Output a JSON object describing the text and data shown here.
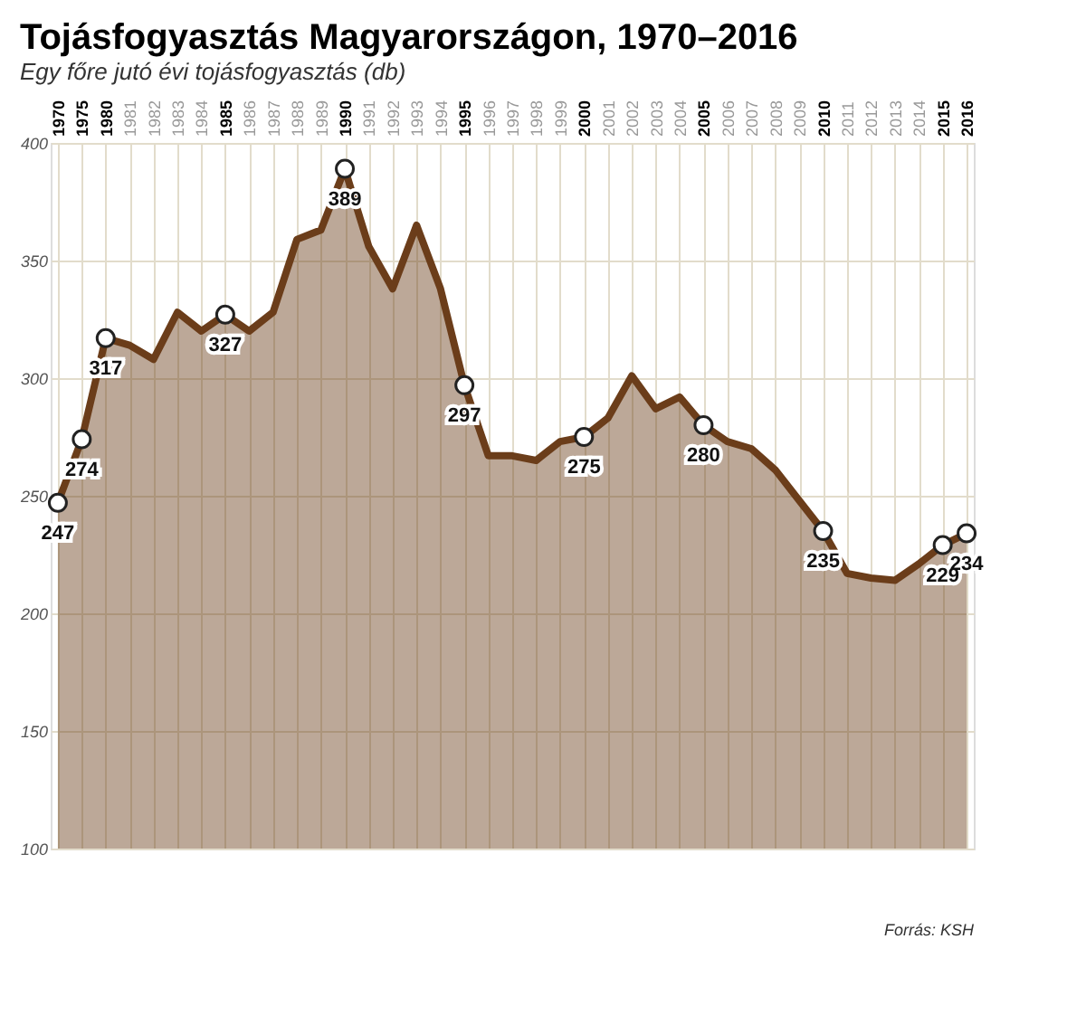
{
  "chart_data": {
    "type": "area",
    "title": "Tojásfogyasztás Magyarországon, 1970–2016",
    "subtitle": "Egy főre jutó évi tojásfogyasztás (db)",
    "categories": [
      "1970",
      "1975",
      "1980",
      "1981",
      "1982",
      "1983",
      "1984",
      "1985",
      "1986",
      "1987",
      "1988",
      "1989",
      "1990",
      "1991",
      "1992",
      "1993",
      "1994",
      "1995",
      "1996",
      "1997",
      "1998",
      "1999",
      "2000",
      "2001",
      "2002",
      "2003",
      "2004",
      "2005",
      "2006",
      "2007",
      "2008",
      "2009",
      "2010",
      "2011",
      "2012",
      "2013",
      "2014",
      "2015",
      "2016"
    ],
    "series": [
      {
        "color": "#6b3d1a",
        "values": [
          247,
          274,
          317,
          314,
          308,
          328,
          320,
          327,
          320,
          328,
          359,
          363,
          389,
          356,
          338,
          365,
          338,
          297,
          267,
          267,
          265,
          273,
          275,
          283,
          301,
          287,
          292,
          280,
          273,
          270,
          261,
          248,
          235,
          217,
          215,
          214,
          221,
          229,
          234
        ],
        "value_labels": [
          "247",
          "274",
          "317",
          null,
          null,
          null,
          null,
          "327",
          null,
          null,
          null,
          null,
          "389",
          null,
          null,
          null,
          null,
          "297",
          null,
          null,
          null,
          null,
          "275",
          null,
          null,
          null,
          null,
          "280",
          null,
          null,
          null,
          null,
          "235",
          null,
          null,
          null,
          null,
          "229",
          "234"
        ]
      }
    ],
    "ylim": [
      100,
      400
    ],
    "yticks": [
      100,
      150,
      200,
      250,
      300,
      350,
      400
    ],
    "grid": true,
    "annotations": [
      "Forrás: KSH"
    ]
  }
}
